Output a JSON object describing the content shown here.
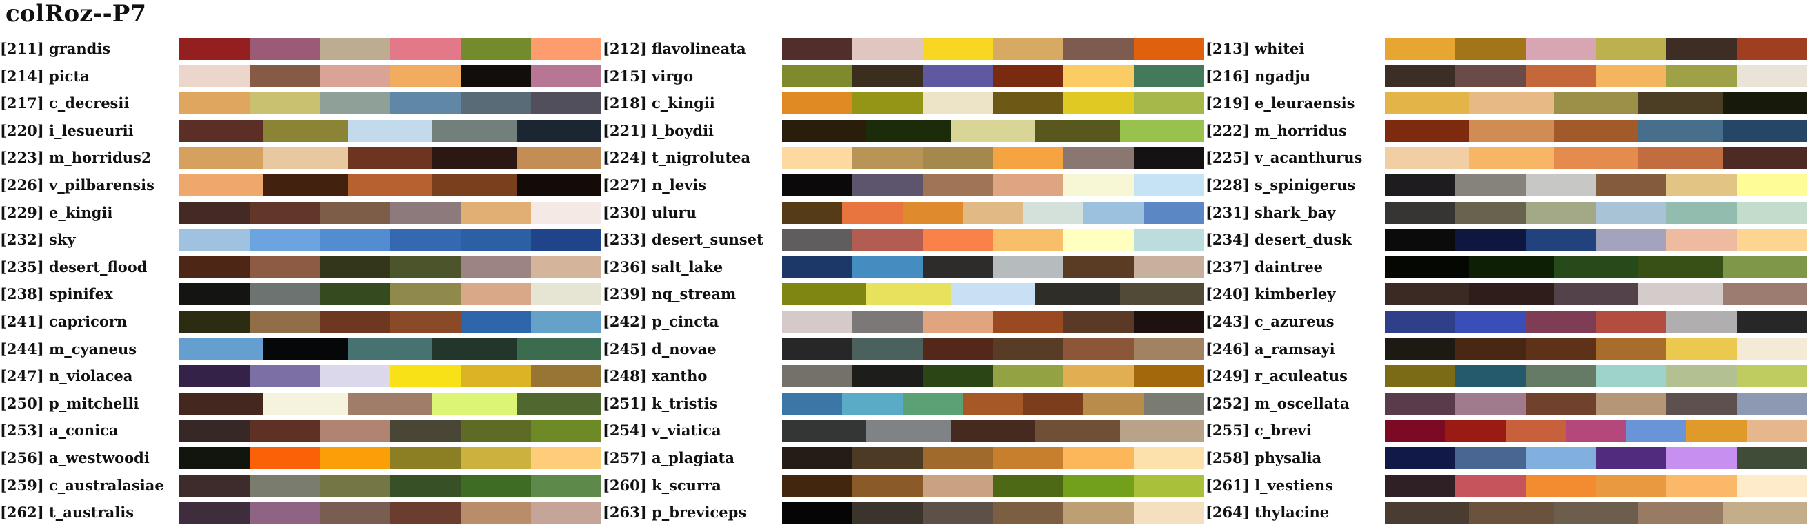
{
  "title": "colRoz--P7",
  "chart_data": {
    "type": "table",
    "title": "colRoz--P7",
    "palettes": [
      {
        "label": "[211] grandis",
        "colors": [
          "#93201f",
          "#9b5b77",
          "#bdac8f",
          "#e27888",
          "#738b2d",
          "#fd9c6c"
        ]
      },
      {
        "label": "[212] flavolineata",
        "colors": [
          "#522e2b",
          "#e0c6bf",
          "#f8d622",
          "#d6aa63",
          "#7e5b4f",
          "#e0610d"
        ]
      },
      {
        "label": "[213] whitei",
        "colors": [
          "#e7a532",
          "#a37519",
          "#d8a6b3",
          "#bdb04f",
          "#3e2d24",
          "#a03e22"
        ]
      },
      {
        "label": "[214] picta",
        "colors": [
          "#ecd6cc",
          "#855b45",
          "#d9a398",
          "#f1ac60",
          "#120e0a",
          "#b77694"
        ]
      },
      {
        "label": "[215] virgo",
        "colors": [
          "#7e8a2c",
          "#3c2e1f",
          "#5e59a0",
          "#7a2a0e",
          "#fccc64",
          "#437a5c"
        ]
      },
      {
        "label": "[216] ngadju",
        "colors": [
          "#3c2e26",
          "#6a4b48",
          "#c4683b",
          "#f4b55f",
          "#9ea145",
          "#eae3d8"
        ]
      },
      {
        "label": "[217] c_decresii",
        "colors": [
          "#dea65f",
          "#c9c16f",
          "#8ea097",
          "#6088a6",
          "#596b77",
          "#524f5c"
        ]
      },
      {
        "label": "[218] c_kingii",
        "colors": [
          "#e08a24",
          "#949416",
          "#ede3c7",
          "#6e5816",
          "#e0c922",
          "#a7b84b"
        ]
      },
      {
        "label": "[219] e_leuraensis",
        "colors": [
          "#e3b448",
          "#e7b985",
          "#9c8f48",
          "#4b3e24",
          "#171a0a"
        ]
      },
      {
        "label": "[220] i_lesueurii",
        "colors": [
          "#5c2f26",
          "#8a8434",
          "#c3daec",
          "#72807c",
          "#1a2631"
        ]
      },
      {
        "label": "[221] l_boydii",
        "colors": [
          "#2b1d0c",
          "#1c2b0a",
          "#d8d596",
          "#58571e",
          "#98c14d"
        ]
      },
      {
        "label": "[222] m_horridus",
        "colors": [
          "#7d2a0e",
          "#d08c52",
          "#a35a2b",
          "#476e8b",
          "#254666"
        ]
      },
      {
        "label": "[223] m_horridus2",
        "colors": [
          "#d6a05e",
          "#e7c8a0",
          "#6d351f",
          "#2c1812",
          "#c48d55"
        ]
      },
      {
        "label": "[224] t_nigrolutea",
        "colors": [
          "#fdd9a1",
          "#b89556",
          "#a5894c",
          "#f6a441",
          "#8b7772",
          "#141213"
        ]
      },
      {
        "label": "[225] v_acanthurus",
        "colors": [
          "#f2cea5",
          "#f6b665",
          "#e48b4d",
          "#c26d3f",
          "#4e2a25"
        ]
      },
      {
        "label": "[226] v_pilbarensis",
        "colors": [
          "#efa86c",
          "#42210f",
          "#b6612f",
          "#79401d",
          "#140a08"
        ]
      },
      {
        "label": "[227] n_levis",
        "colors": [
          "#0c090a",
          "#5d556e",
          "#a07556",
          "#dda582",
          "#f7f7d6",
          "#c5e3f5"
        ]
      },
      {
        "label": "[228] s_spinigerus",
        "colors": [
          "#1e1c1e",
          "#86827c",
          "#c7c7c5",
          "#825c3b",
          "#e2c584",
          "#fefc96"
        ]
      },
      {
        "label": "[229] e_kingii",
        "colors": [
          "#432a25",
          "#623629",
          "#7d5c48",
          "#8c7a7d",
          "#e1ae74",
          "#f5e9e6"
        ]
      },
      {
        "label": "[230] uluru",
        "colors": [
          "#563b17",
          "#e87540",
          "#df8a2d",
          "#e1b985",
          "#d4e1db",
          "#9bc1df",
          "#5c87c5"
        ]
      },
      {
        "label": "[231] shark_bay",
        "colors": [
          "#373533",
          "#68634f",
          "#a3a886",
          "#a7c3d5",
          "#92bcae",
          "#c3dccc"
        ]
      },
      {
        "label": "[232] sky",
        "colors": [
          "#9ec2df",
          "#6ba4de",
          "#528dd1",
          "#3468b0",
          "#2d5fa5",
          "#1f4489"
        ]
      },
      {
        "label": "[233] desert_sunset",
        "colors": [
          "#605d5f",
          "#b25c52",
          "#fa8149",
          "#f8be6a",
          "#ffffbf",
          "#bcdddd"
        ]
      },
      {
        "label": "[234] desert_dusk",
        "colors": [
          "#0b0b0b",
          "#0f1740",
          "#21427c",
          "#a3a3bd",
          "#efbba0",
          "#fed590"
        ]
      },
      {
        "label": "[235] desert_flood",
        "colors": [
          "#4d2616",
          "#8d5b43",
          "#34361b",
          "#4b542a",
          "#9b8481",
          "#d4b49a"
        ]
      },
      {
        "label": "[236] salt_lake",
        "colors": [
          "#1b3868",
          "#448dc1",
          "#2d2c2a",
          "#b6bcbd",
          "#5a3c25",
          "#c8b09f"
        ]
      },
      {
        "label": "[237] daintree",
        "colors": [
          "#050703",
          "#0d2006",
          "#264a19",
          "#384f15",
          "#7f9749"
        ]
      },
      {
        "label": "[238] spinifex",
        "colors": [
          "#141412",
          "#6c7370",
          "#364a1f",
          "#8f8a4b",
          "#d9a888",
          "#e6e5d3"
        ]
      },
      {
        "label": "[239] nq_stream",
        "colors": [
          "#7f8611",
          "#e6e25b",
          "#c7e0f3",
          "#2e2d27",
          "#514a37"
        ]
      },
      {
        "label": "[240] kimberley",
        "colors": [
          "#3b2a23",
          "#2e1d1a",
          "#54424a",
          "#d4cccb",
          "#9c7b71"
        ]
      },
      {
        "label": "[241] capricorn",
        "colors": [
          "#2c2c13",
          "#906e47",
          "#6e371f",
          "#8b4a27",
          "#2e66ab",
          "#64a2c9"
        ]
      },
      {
        "label": "[242] p_cincta",
        "colors": [
          "#d6cac8",
          "#7b7877",
          "#e0a47f",
          "#9a4921",
          "#5a3926",
          "#1d1210"
        ]
      },
      {
        "label": "[243] c_azureus",
        "colors": [
          "#2f3f89",
          "#3a4eb7",
          "#7e3d54",
          "#b24d3f",
          "#b1aeaf",
          "#272727"
        ]
      },
      {
        "label": "[244] m_cyaneus",
        "colors": [
          "#659fd0",
          "#050709",
          "#467371",
          "#22362c",
          "#3a6c4d"
        ]
      },
      {
        "label": "[245] d_novae",
        "colors": [
          "#272727",
          "#4a615d",
          "#53271a",
          "#583c25",
          "#8c5639",
          "#a28361"
        ]
      },
      {
        "label": "[246] a_ramsayi",
        "colors": [
          "#1c1a12",
          "#482815",
          "#5e3219",
          "#a86d2d",
          "#ebc84e",
          "#f4ead6"
        ]
      },
      {
        "label": "[247] n_violacea",
        "colors": [
          "#342249",
          "#7c6fa5",
          "#dcd8ec",
          "#f8e217",
          "#dbb426",
          "#977534"
        ]
      },
      {
        "label": "[248] xantho",
        "colors": [
          "#74706a",
          "#1d1d1c",
          "#2b4515",
          "#93a343",
          "#e1ae51",
          "#a3670c"
        ]
      },
      {
        "label": "[249] r_aculeatus",
        "colors": [
          "#7b6b17",
          "#255a6c",
          "#657b66",
          "#9ed3cb",
          "#b3c092",
          "#bfcc60"
        ]
      },
      {
        "label": "[250] p_mitchelli",
        "colors": [
          "#44281f",
          "#f5f2de",
          "#a07d69",
          "#dcf574",
          "#50682f"
        ]
      },
      {
        "label": "[251] k_tristis",
        "colors": [
          "#3b76a6",
          "#59abc6",
          "#5aa175",
          "#a65826",
          "#7b3d1b",
          "#b98c4c",
          "#7a7c72"
        ]
      },
      {
        "label": "[252] m_oscellata",
        "colors": [
          "#5a3b4c",
          "#a07b8d",
          "#70422d",
          "#b59676",
          "#5d504f",
          "#8d99b2"
        ]
      },
      {
        "label": "[253] a_conica",
        "colors": [
          "#372827",
          "#5f3024",
          "#b08470",
          "#494635",
          "#5e6b25",
          "#6d8a27"
        ]
      },
      {
        "label": "[254] v_viatica",
        "colors": [
          "#343636",
          "#808386",
          "#46291f",
          "#6f4f36",
          "#b9a28a"
        ]
      },
      {
        "label": "[255] c_brevi",
        "colors": [
          "#7c0a24",
          "#9a1b13",
          "#c8603c",
          "#b4487c",
          "#6994d7",
          "#e09a29",
          "#e6b78d"
        ]
      },
      {
        "label": "[256] a_westwoodi",
        "colors": [
          "#12150d",
          "#fb6207",
          "#fb9f08",
          "#8c7f23",
          "#cbb23e",
          "#fdcd79"
        ]
      },
      {
        "label": "[257] a_plagiata",
        "colors": [
          "#231c17",
          "#4c3a24",
          "#a06a2c",
          "#c77f2d",
          "#fbb759",
          "#fde1aa"
        ]
      },
      {
        "label": "[258] physalia",
        "colors": [
          "#111949",
          "#496692",
          "#81afde",
          "#502b7e",
          "#c78ff0",
          "#3f4c37"
        ]
      },
      {
        "label": "[259] c_australasiae",
        "colors": [
          "#3e2b2b",
          "#7a7d6e",
          "#757645",
          "#385025",
          "#3e6c24",
          "#5d8a4a"
        ]
      },
      {
        "label": "[260] k_scurra",
        "colors": [
          "#43260e",
          "#8a5b29",
          "#c8a281",
          "#4e6915",
          "#72a01b",
          "#a8c03a"
        ]
      },
      {
        "label": "[261] l_vestiens",
        "colors": [
          "#2f2025",
          "#c6545d",
          "#f38b31",
          "#ea9a3e",
          "#fbb868",
          "#fdebc9"
        ]
      },
      {
        "label": "[262] t_australis",
        "colors": [
          "#3d2d3d",
          "#8f6384",
          "#7a5d52",
          "#6a3d2f",
          "#ba8d6a",
          "#c4a597"
        ]
      },
      {
        "label": "[263] p_breviceps",
        "colors": [
          "#050505",
          "#3b342d",
          "#5c5048",
          "#7c5e42",
          "#bca073",
          "#f4dfbe"
        ]
      },
      {
        "label": "[264] thylacine",
        "colors": [
          "#4a3c30",
          "#6a523d",
          "#6c5d4c",
          "#977b63",
          "#c4ad89"
        ]
      }
    ]
  }
}
